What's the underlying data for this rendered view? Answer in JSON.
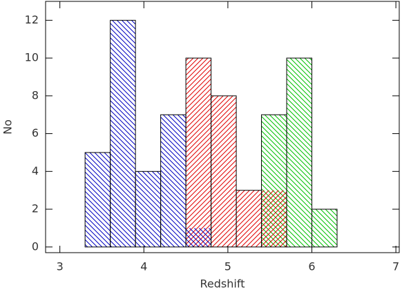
{
  "chart_data": {
    "type": "histogram",
    "xlabel": "Redshift",
    "ylabel": "No",
    "bins": [
      3.3,
      3.6,
      3.9,
      4.2,
      4.5,
      4.8,
      5.1,
      5.4,
      5.7,
      6.0,
      6.3
    ],
    "values": [
      5,
      12,
      4,
      7,
      10,
      8,
      3,
      7,
      10,
      2
    ],
    "color": "#000000",
    "series": [
      {
        "color": "#00c000",
        "bins": [
          5.4,
          5.7,
          6.0,
          6.3
        ],
        "values": [
          7,
          10,
          2
        ]
      },
      {
        "color": "#e00000",
        "bins": [
          4.5,
          4.8,
          5.1,
          5.4,
          5.7
        ],
        "values": [
          10,
          8,
          3,
          3
        ]
      },
      {
        "color": "#0000c0",
        "bins": [
          3.3,
          3.6,
          3.9,
          4.2,
          4.5,
          4.8
        ],
        "values": [
          5,
          12,
          4,
          7,
          1
        ]
      }
    ],
    "xlim": [
      2.83,
      7.04
    ],
    "ylim": [
      -0.3,
      13
    ],
    "xticks": [
      3,
      4,
      5,
      6,
      7
    ],
    "yticks": [
      0,
      2,
      4,
      6,
      8,
      10,
      12
    ]
  }
}
